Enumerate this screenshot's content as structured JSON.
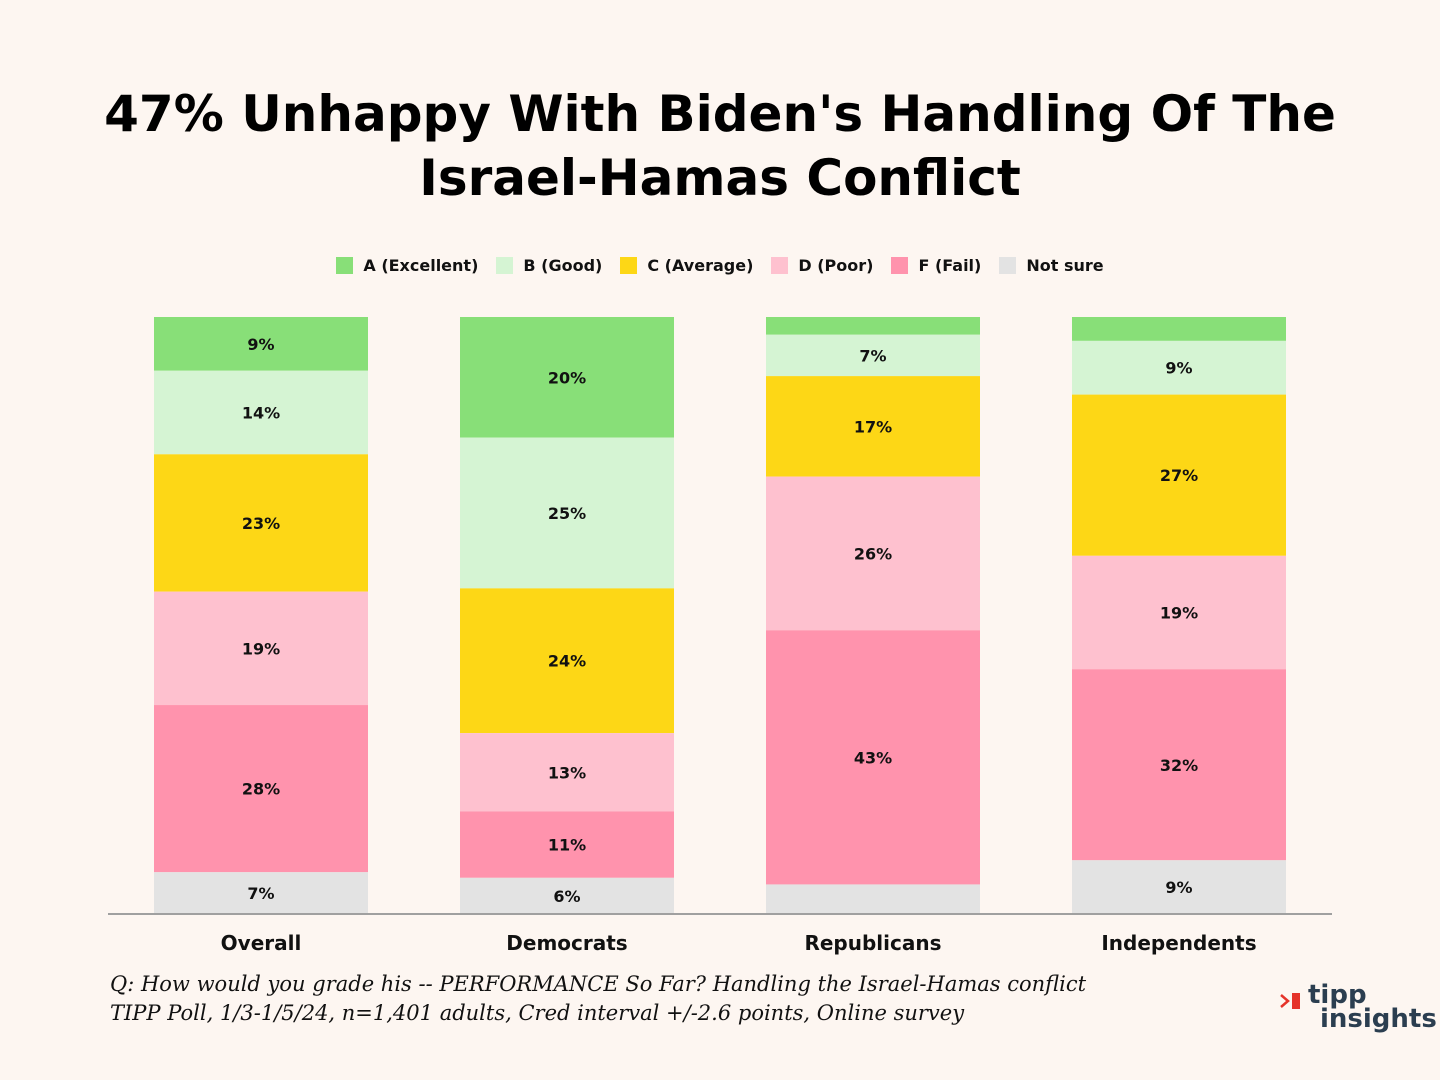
{
  "title_lines": [
    "47% Unhappy With Biden's Handling Of The",
    "Israel-Hamas Conflict"
  ],
  "colors": {
    "background": "#fdf6f1",
    "A": "#88df78",
    "B": "#d5f4d3",
    "C": "#fdd716",
    "D": "#fec1cf",
    "F": "#ff93ad",
    "NS": "#e3e3e3",
    "axis": "#a0a0a0",
    "logo_red": "#e5332a",
    "logo_text": "#2b3e50"
  },
  "chart_data": {
    "type": "bar",
    "stacked": true,
    "categories": [
      "Overall",
      "Democrats",
      "Republicans",
      "Independents"
    ],
    "series": [
      {
        "name": "A (Excellent)",
        "color_key": "A",
        "values": [
          9,
          20,
          3,
          4
        ],
        "labels": [
          "9%",
          "20%",
          "",
          ""
        ]
      },
      {
        "name": "B (Good)",
        "color_key": "B",
        "values": [
          14,
          25,
          7,
          9
        ],
        "labels": [
          "14%",
          "25%",
          "7%",
          "9%"
        ]
      },
      {
        "name": "C (Average)",
        "color_key": "C",
        "values": [
          23,
          24,
          17,
          27
        ],
        "labels": [
          "23%",
          "24%",
          "17%",
          "27%"
        ]
      },
      {
        "name": "D (Poor)",
        "color_key": "D",
        "values": [
          19,
          13,
          26,
          19
        ],
        "labels": [
          "19%",
          "13%",
          "26%",
          "19%"
        ]
      },
      {
        "name": "F (Fail)",
        "color_key": "F",
        "values": [
          28,
          11,
          43,
          32
        ],
        "labels": [
          "28%",
          "11%",
          "43%",
          "32%"
        ]
      },
      {
        "name": "Not sure",
        "color_key": "NS",
        "values": [
          7,
          6,
          5,
          9
        ],
        "labels": [
          "7%",
          "6%",
          "",
          "9%"
        ]
      }
    ],
    "legend_position": "top-center",
    "grid": false,
    "ylim": [
      0,
      100
    ]
  },
  "footnote": {
    "line1": "Q:  How would you grade his -- PERFORMANCE So Far? Handling the Israel-Hamas conflict",
    "line2": "TIPP Poll, 1/3-1/5/24, n=1,401 adults, Cred interval +/-2.6 points, Online survey"
  },
  "logo": {
    "line1": "tipp",
    "line2": "insights"
  }
}
